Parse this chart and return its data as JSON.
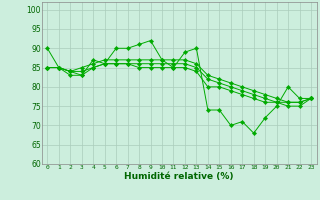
{
  "title": "",
  "xlabel": "Humidité relative (%)",
  "ylabel": "",
  "background_color": "#cceedd",
  "grid_color": "#aaccbb",
  "line_color": "#00aa00",
  "marker_color": "#00aa00",
  "xlim": [
    -0.5,
    23.5
  ],
  "ylim": [
    60,
    102
  ],
  "yticks": [
    60,
    65,
    70,
    75,
    80,
    85,
    90,
    95,
    100
  ],
  "xtick_labels": [
    "0",
    "1",
    "2",
    "3",
    "4",
    "5",
    "6",
    "7",
    "8",
    "9",
    "10",
    "11",
    "12",
    "13",
    "14",
    "15",
    "16",
    "17",
    "18",
    "19",
    "20",
    "21",
    "22",
    "23"
  ],
  "series": [
    [
      90,
      85,
      84,
      83,
      87,
      86,
      90,
      90,
      91,
      92,
      87,
      85,
      89,
      90,
      74,
      74,
      70,
      71,
      68,
      72,
      75,
      80,
      77,
      77
    ],
    [
      85,
      85,
      84,
      85,
      86,
      87,
      87,
      87,
      87,
      87,
      87,
      87,
      87,
      86,
      83,
      82,
      81,
      80,
      79,
      78,
      77,
      76,
      76,
      77
    ],
    [
      85,
      85,
      84,
      84,
      85,
      86,
      86,
      86,
      86,
      86,
      86,
      86,
      86,
      85,
      82,
      81,
      80,
      79,
      78,
      77,
      76,
      75,
      75,
      77
    ],
    [
      85,
      85,
      83,
      83,
      85,
      86,
      86,
      86,
      85,
      85,
      85,
      85,
      85,
      84,
      80,
      80,
      79,
      78,
      77,
      76,
      76,
      76,
      76,
      77
    ]
  ]
}
